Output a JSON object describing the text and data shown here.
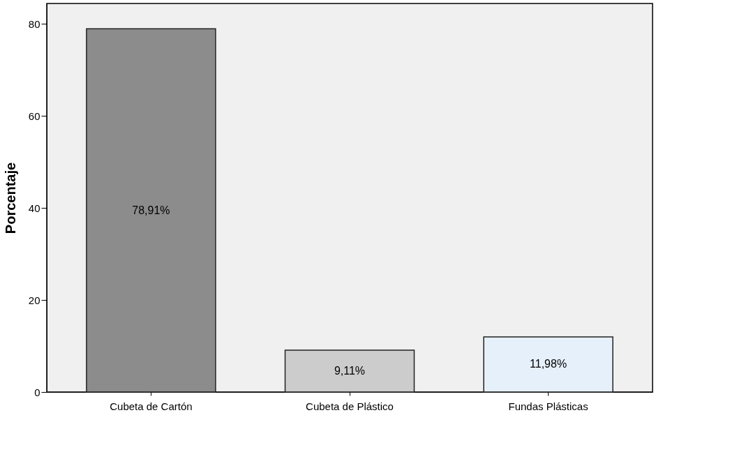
{
  "chart_data": {
    "type": "bar",
    "ylabel": "Porcentaje",
    "categories": [
      "Cubeta de Cartón",
      "Cubeta de Plástico",
      "Fundas Plásticas"
    ],
    "values": [
      78.91,
      9.11,
      11.98
    ],
    "colors": [
      "#8c8c8c",
      "#cccccc",
      "#e6f0fb"
    ],
    "value_labels": [
      "78,91%",
      "9,11%",
      "11,98%"
    ],
    "ylim": [
      0,
      84.4
    ],
    "yticks": [
      0,
      20,
      40,
      60,
      80
    ],
    "grid": false
  }
}
